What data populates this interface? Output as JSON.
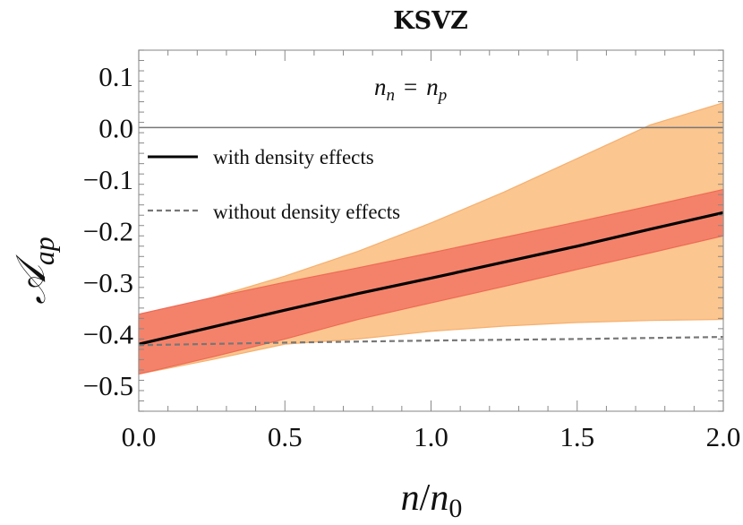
{
  "chart_data": {
    "type": "area",
    "title": "KSVZ",
    "annotation": {
      "lhs_base": "n",
      "lhs_sub": "n",
      "eq": "=",
      "rhs_base": "n",
      "rhs_sub": "p"
    },
    "xlabel": {
      "base": "n",
      "slash": "/",
      "base2": "n",
      "sub": "0"
    },
    "ylabel": {
      "base": "𝒜",
      "sub": "ap"
    },
    "xlim": [
      0,
      2
    ],
    "ylim": [
      -0.55,
      0.15
    ],
    "xticks": [
      0,
      0.5,
      1,
      1.5,
      2
    ],
    "xtick_labels": [
      "0.0",
      "0.5",
      "1.0",
      "1.5",
      "2.0"
    ],
    "yticks": [
      0.1,
      0.0,
      -0.1,
      -0.2,
      -0.3,
      -0.4,
      -0.5
    ],
    "ytick_labels": [
      "0.1",
      "0.0",
      "−0.1",
      "−0.2",
      "−0.3",
      "−0.4",
      "−0.5"
    ],
    "reference_line_y": 0,
    "legend": {
      "placement": "upper-left",
      "entries": [
        {
          "label": "with density effects",
          "style": "solid",
          "color": "#000000"
        },
        {
          "label": "without density effects",
          "style": "dashed",
          "color": "#777777"
        }
      ]
    },
    "x": [
      0,
      0.25,
      0.5,
      0.75,
      1.0,
      1.25,
      1.5,
      1.75,
      2.0
    ],
    "series": [
      {
        "name": "with density effects",
        "style": "solid",
        "color": "#000000",
        "values": [
          -0.42,
          -0.387,
          -0.354,
          -0.322,
          -0.292,
          -0.261,
          -0.23,
          -0.197,
          -0.165
        ]
      },
      {
        "name": "without density effects",
        "style": "dashed",
        "color": "#777777",
        "values": [
          -0.422,
          -0.4195,
          -0.417,
          -0.415,
          -0.413,
          -0.4115,
          -0.41,
          -0.408,
          -0.406
        ]
      }
    ],
    "bands": [
      {
        "role": "outer",
        "color": "#fbc68f",
        "upper": [
          -0.365,
          -0.33,
          -0.288,
          -0.24,
          -0.185,
          -0.125,
          -0.06,
          0.005,
          0.048
        ],
        "lower": [
          -0.478,
          -0.45,
          -0.42,
          -0.41,
          -0.395,
          -0.385,
          -0.378,
          -0.374,
          -0.372
        ]
      },
      {
        "role": "inner",
        "color": "#f4826a",
        "upper": [
          -0.362,
          -0.33,
          -0.3,
          -0.272,
          -0.243,
          -0.213,
          -0.183,
          -0.152,
          -0.12
        ],
        "lower": [
          -0.478,
          -0.445,
          -0.41,
          -0.372,
          -0.34,
          -0.308,
          -0.275,
          -0.243,
          -0.21
        ]
      }
    ]
  }
}
